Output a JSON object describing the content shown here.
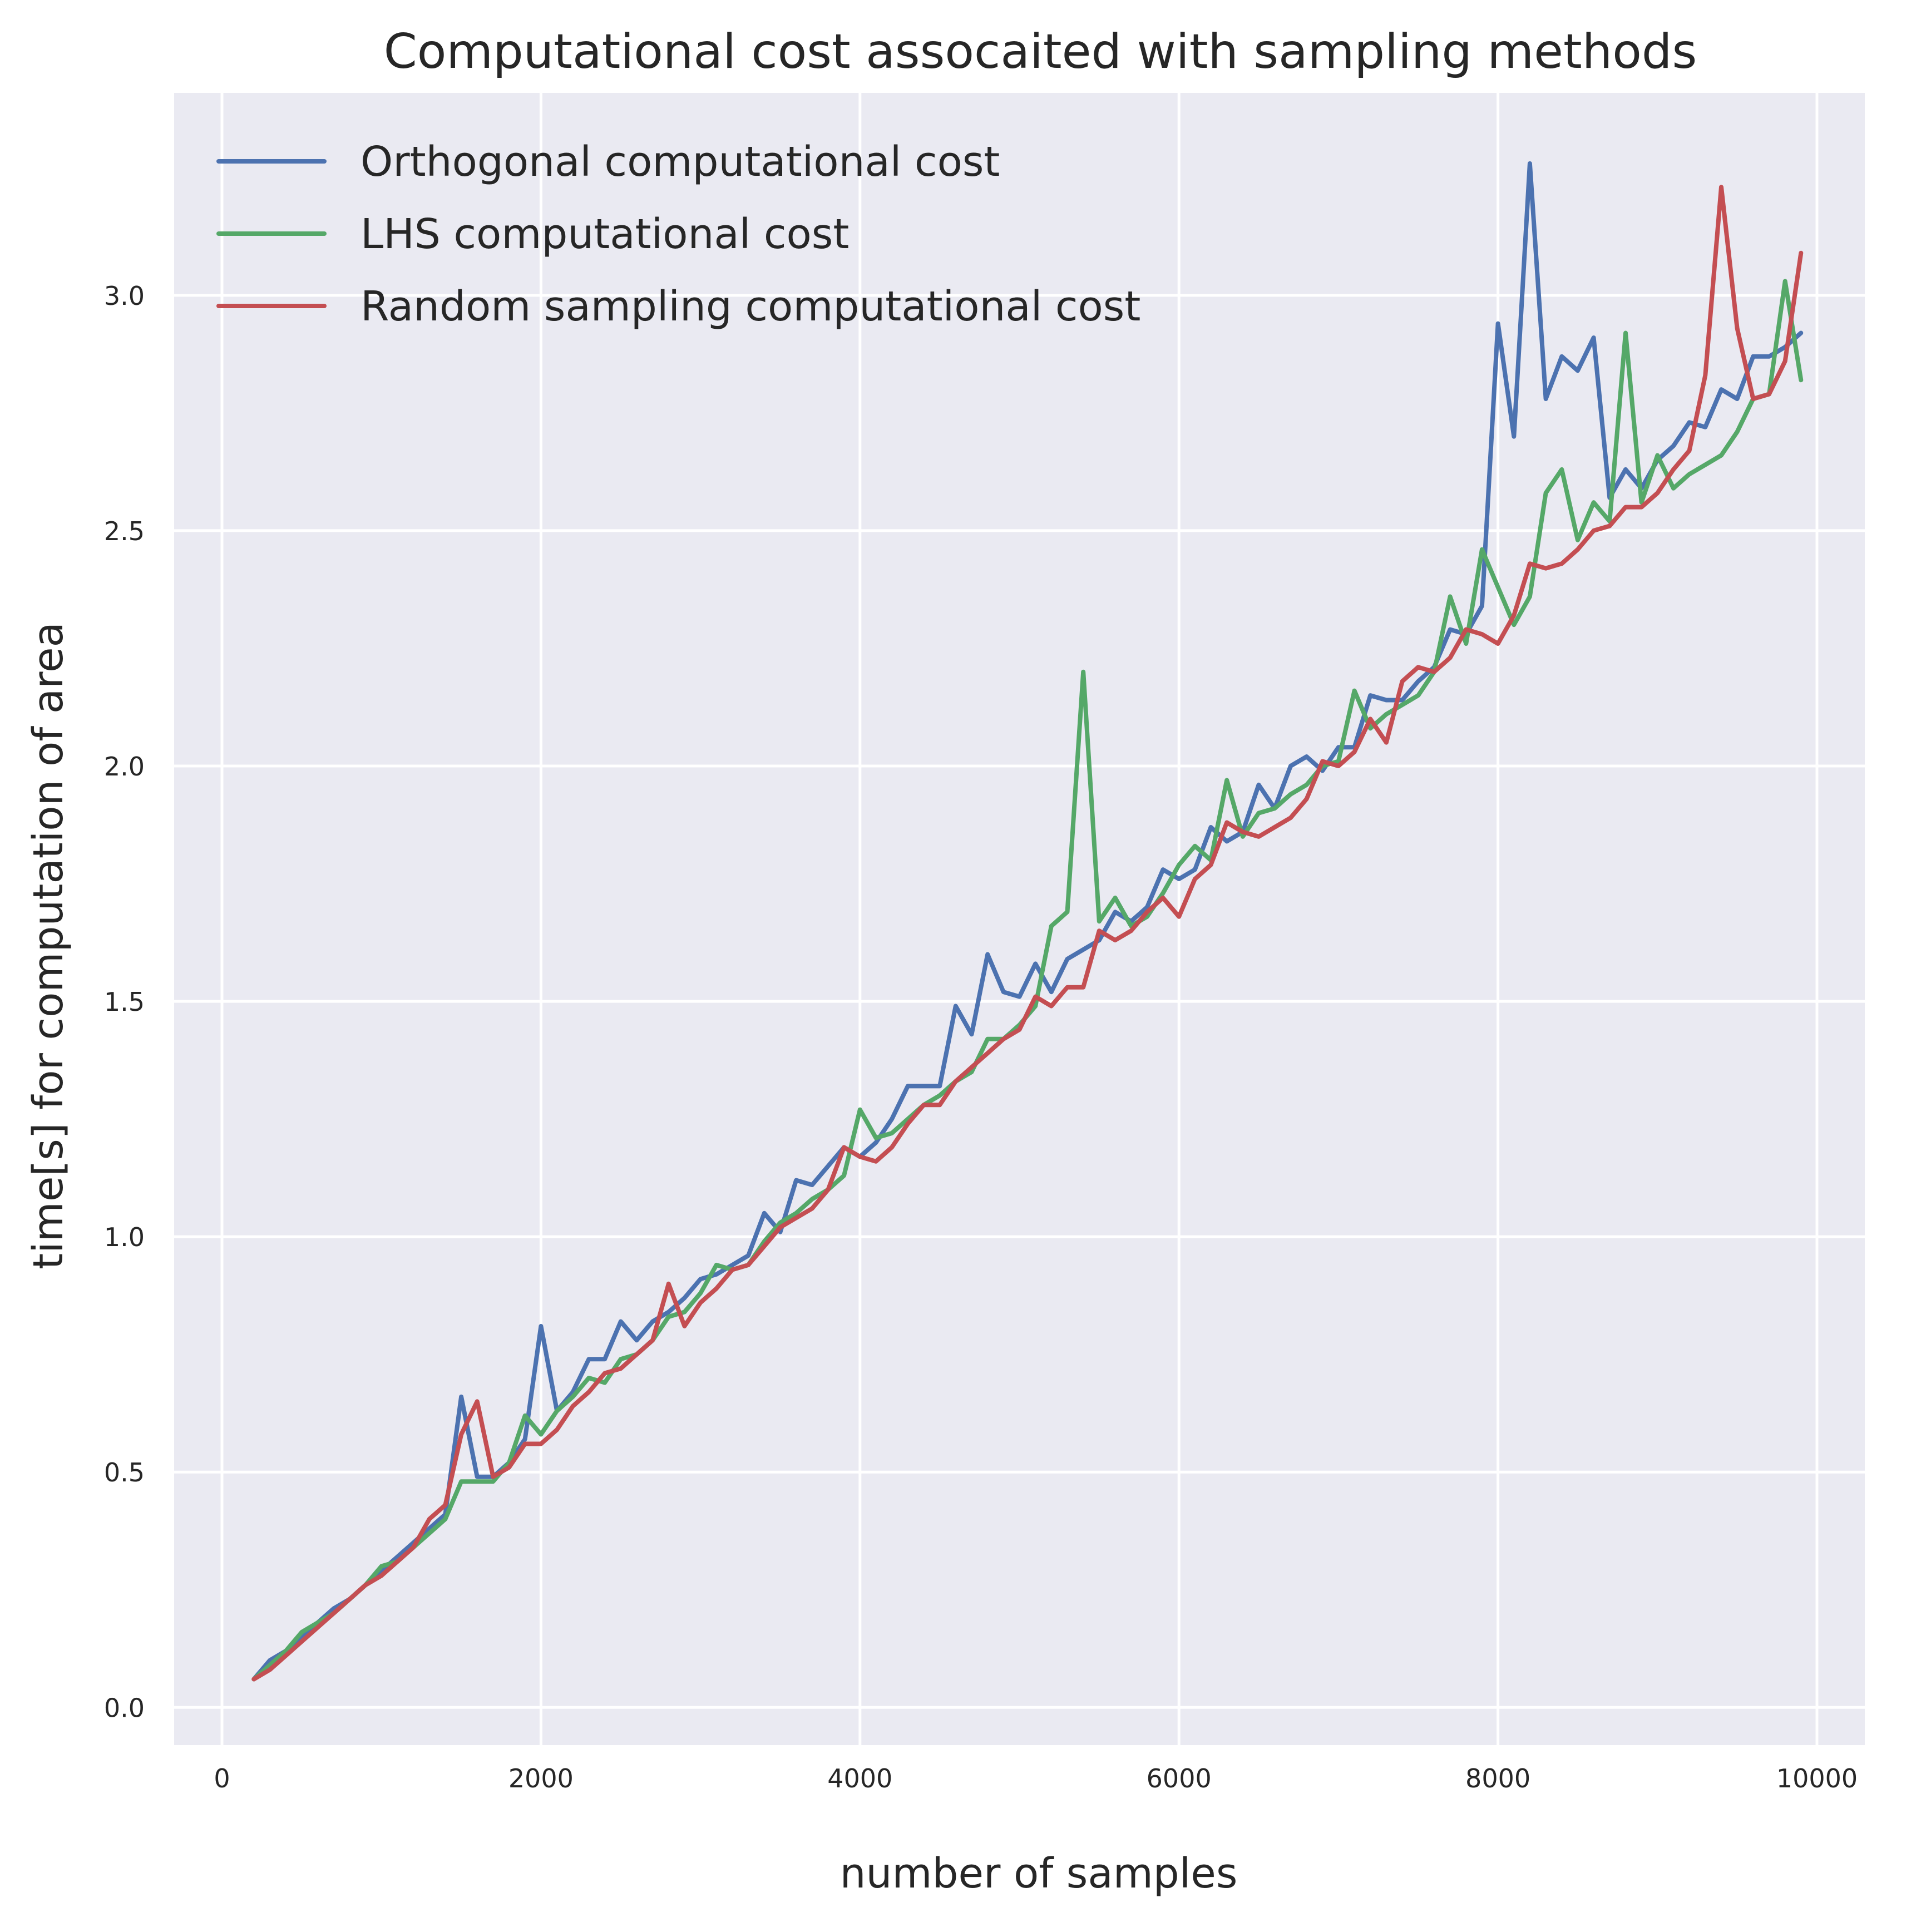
{
  "chart_data": {
    "type": "line",
    "title": "Computational cost assocaited with sampling methods",
    "xlabel": "number of samples",
    "ylabel": "time[s] for computation of area",
    "xlim": [
      -300,
      10300
    ],
    "ylim": [
      -0.08,
      3.43
    ],
    "xticks": [
      0,
      2000,
      4000,
      6000,
      8000,
      10000
    ],
    "xtick_labels": [
      "0",
      "2000",
      "4000",
      "6000",
      "8000",
      "10000"
    ],
    "yticks": [
      0.0,
      0.5,
      1.0,
      1.5,
      2.0,
      2.5,
      3.0
    ],
    "ytick_labels": [
      "0.0",
      "0.5",
      "1.0",
      "1.5",
      "2.0",
      "2.5",
      "3.0"
    ],
    "grid": true,
    "legend_position": "top-left",
    "background": "#eaeaf2",
    "x": [
      200,
      300,
      400,
      500,
      600,
      700,
      800,
      900,
      1000,
      1100,
      1200,
      1300,
      1400,
      1500,
      1600,
      1700,
      1800,
      1900,
      2000,
      2100,
      2200,
      2300,
      2400,
      2500,
      2600,
      2700,
      2800,
      2900,
      3000,
      3100,
      3200,
      3300,
      3400,
      3500,
      3600,
      3700,
      3800,
      3900,
      4000,
      4100,
      4200,
      4300,
      4400,
      4500,
      4600,
      4700,
      4800,
      4900,
      5000,
      5100,
      5200,
      5300,
      5400,
      5500,
      5600,
      5700,
      5800,
      5900,
      6000,
      6100,
      6200,
      6300,
      6400,
      6500,
      6600,
      6700,
      6800,
      6900,
      7000,
      7100,
      7200,
      7300,
      7400,
      7500,
      7600,
      7700,
      7800,
      7900,
      8000,
      8100,
      8200,
      8300,
      8400,
      8500,
      8600,
      8700,
      8800,
      8900,
      9000,
      9100,
      9200,
      9300,
      9400,
      9500,
      9600,
      9700,
      9800,
      9900
    ],
    "series": [
      {
        "name": "Orthogonal computational cost",
        "color": "#4c72b0",
        "values": [
          0.06,
          0.1,
          0.12,
          0.15,
          0.18,
          0.21,
          0.23,
          0.26,
          0.29,
          0.32,
          0.35,
          0.38,
          0.41,
          0.66,
          0.49,
          0.49,
          0.52,
          0.57,
          0.81,
          0.63,
          0.67,
          0.74,
          0.74,
          0.82,
          0.78,
          0.82,
          0.84,
          0.87,
          0.91,
          0.92,
          0.94,
          0.96,
          1.05,
          1.01,
          1.12,
          1.11,
          1.15,
          1.19,
          1.17,
          1.2,
          1.25,
          1.32,
          1.32,
          1.32,
          1.49,
          1.43,
          1.6,
          1.52,
          1.51,
          1.58,
          1.52,
          1.59,
          1.61,
          1.63,
          1.69,
          1.67,
          1.7,
          1.78,
          1.76,
          1.78,
          1.87,
          1.84,
          1.86,
          1.96,
          1.91,
          2.0,
          2.02,
          1.99,
          2.04,
          2.04,
          2.15,
          2.14,
          2.14,
          2.18,
          2.21,
          2.29,
          2.28,
          2.34,
          2.94,
          2.7,
          3.28,
          2.78,
          2.87,
          2.84,
          2.91,
          2.57,
          2.63,
          2.59,
          2.65,
          2.68,
          2.73,
          2.72,
          2.8,
          2.78,
          2.87,
          2.87,
          2.89,
          2.92
        ]
      },
      {
        "name": "LHS computational cost",
        "color": "#55a868",
        "values": [
          0.06,
          0.09,
          0.12,
          0.16,
          0.18,
          0.2,
          0.23,
          0.26,
          0.3,
          0.31,
          0.34,
          0.37,
          0.4,
          0.48,
          0.48,
          0.48,
          0.52,
          0.62,
          0.58,
          0.63,
          0.66,
          0.7,
          0.69,
          0.74,
          0.75,
          0.78,
          0.83,
          0.84,
          0.88,
          0.94,
          0.93,
          0.94,
          0.99,
          1.03,
          1.05,
          1.08,
          1.1,
          1.13,
          1.27,
          1.21,
          1.22,
          1.25,
          1.28,
          1.3,
          1.33,
          1.35,
          1.42,
          1.42,
          1.45,
          1.49,
          1.66,
          1.69,
          2.2,
          1.67,
          1.72,
          1.66,
          1.68,
          1.73,
          1.79,
          1.83,
          1.8,
          1.97,
          1.85,
          1.9,
          1.91,
          1.94,
          1.96,
          2.0,
          2.01,
          2.16,
          2.08,
          2.11,
          2.13,
          2.15,
          2.2,
          2.36,
          2.26,
          2.46,
          2.38,
          2.3,
          2.36,
          2.58,
          2.63,
          2.48,
          2.56,
          2.52,
          2.92,
          2.56,
          2.66,
          2.59,
          2.62,
          2.64,
          2.66,
          2.71,
          2.78,
          2.79,
          3.03,
          2.82
        ]
      },
      {
        "name": "Random sampling computational cost",
        "color": "#c44e52",
        "values": [
          0.06,
          0.08,
          0.11,
          0.14,
          0.17,
          0.2,
          0.23,
          0.26,
          0.28,
          0.31,
          0.34,
          0.4,
          0.43,
          0.58,
          0.65,
          0.49,
          0.51,
          0.56,
          0.56,
          0.59,
          0.64,
          0.67,
          0.71,
          0.72,
          0.75,
          0.78,
          0.9,
          0.81,
          0.86,
          0.89,
          0.93,
          0.94,
          0.98,
          1.02,
          1.04,
          1.06,
          1.1,
          1.19,
          1.17,
          1.16,
          1.19,
          1.24,
          1.28,
          1.28,
          1.33,
          1.36,
          1.39,
          1.42,
          1.44,
          1.51,
          1.49,
          1.53,
          1.53,
          1.65,
          1.63,
          1.65,
          1.69,
          1.72,
          1.68,
          1.76,
          1.79,
          1.88,
          1.86,
          1.85,
          1.87,
          1.89,
          1.93,
          2.01,
          2.0,
          2.03,
          2.1,
          2.05,
          2.18,
          2.21,
          2.2,
          2.23,
          2.29,
          2.28,
          2.26,
          2.32,
          2.43,
          2.42,
          2.43,
          2.46,
          2.5,
          2.51,
          2.55,
          2.55,
          2.58,
          2.63,
          2.67,
          2.83,
          3.23,
          2.93,
          2.78,
          2.79,
          2.86,
          3.09
        ]
      }
    ]
  }
}
